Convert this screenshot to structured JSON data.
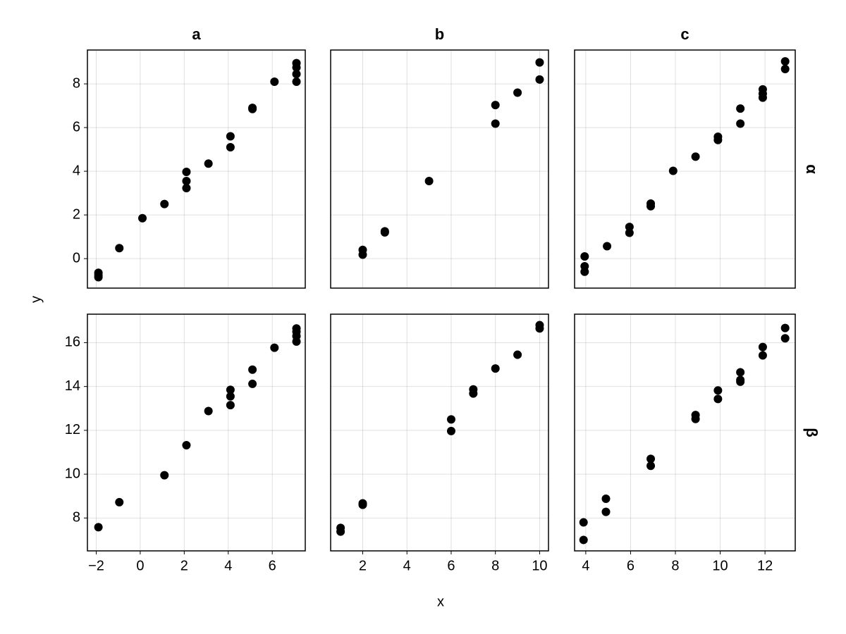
{
  "chart_data": {
    "type": "scatter",
    "xlabel": "x",
    "ylabel": "y",
    "columns": [
      "a",
      "b",
      "c"
    ],
    "rows": [
      "α",
      "β"
    ],
    "color": "#000000",
    "grid": true,
    "column_axes": [
      {
        "xlim": [
          -2.4,
          7.5
        ],
        "xticks": [
          {
            "value": -2,
            "label": "−2"
          },
          0,
          2,
          4,
          6
        ]
      },
      {
        "xlim": [
          0.55,
          10.4
        ],
        "xticks": [
          2,
          4,
          6,
          8,
          10
        ]
      },
      {
        "xlim": [
          3.5,
          13.35
        ],
        "xticks": [
          4,
          6,
          8,
          10,
          12
        ]
      }
    ],
    "row_axes": [
      {
        "ylim": [
          -1.35,
          9.55
        ],
        "yticks": [
          0,
          2,
          4,
          6,
          8
        ]
      },
      {
        "ylim": [
          6.5,
          17.3
        ],
        "yticks": [
          8,
          10,
          12,
          14,
          16
        ]
      }
    ],
    "panels": [
      [
        {
          "x": [
            -1.9,
            -1.9,
            -1.9,
            -0.95,
            0.1,
            1.1,
            2.1,
            2.1,
            2.1,
            3.1,
            4.1,
            4.1,
            5.1,
            5.1,
            6.1,
            7.1,
            7.1,
            7.1,
            7.1
          ],
          "y": [
            -0.65,
            -0.75,
            -0.85,
            0.48,
            1.85,
            2.5,
            3.97,
            3.55,
            3.23,
            4.35,
            5.6,
            5.1,
            6.85,
            6.9,
            8.1,
            8.95,
            8.75,
            8.45,
            8.1
          ]
        },
        {
          "x": [
            2,
            2,
            3,
            3,
            5,
            8,
            8,
            9,
            10,
            10
          ],
          "y": [
            0.4,
            0.18,
            1.25,
            1.2,
            3.55,
            7.03,
            6.18,
            7.6,
            8.98,
            8.2
          ]
        },
        {
          "x": [
            3.95,
            3.95,
            3.95,
            4.95,
            5.95,
            5.95,
            6.9,
            6.9,
            7.9,
            8.9,
            9.9,
            9.9,
            10.9,
            10.9,
            11.9,
            11.9,
            11.9,
            12.9,
            12.9
          ],
          "y": [
            0.1,
            -0.35,
            -0.6,
            0.57,
            1.45,
            1.18,
            2.52,
            2.4,
            4.02,
            4.67,
            5.58,
            5.43,
            6.87,
            6.18,
            7.75,
            7.55,
            7.37,
            9.03,
            8.68
          ]
        }
      ],
      [
        {
          "x": [
            -1.9,
            -0.95,
            1.1,
            2.1,
            3.1,
            4.1,
            4.1,
            4.1,
            5.1,
            5.1,
            6.1,
            7.1,
            7.1,
            7.1,
            7.1
          ],
          "y": [
            7.58,
            8.72,
            9.95,
            11.32,
            12.88,
            13.85,
            13.55,
            13.15,
            14.77,
            14.12,
            15.77,
            16.65,
            16.5,
            16.3,
            16.05
          ]
        },
        {
          "x": [
            1,
            1,
            2,
            2,
            6,
            6,
            7,
            7,
            8,
            9,
            10,
            10
          ],
          "y": [
            7.55,
            7.38,
            8.67,
            8.6,
            12.5,
            11.97,
            13.87,
            13.68,
            14.82,
            15.45,
            16.8,
            16.65
          ]
        },
        {
          "x": [
            3.9,
            3.9,
            4.9,
            4.9,
            6.9,
            6.9,
            8.9,
            8.9,
            9.9,
            9.9,
            10.9,
            10.9,
            10.9,
            11.9,
            11.9,
            12.9,
            12.9
          ],
          "y": [
            7.8,
            7.0,
            8.88,
            8.28,
            10.7,
            10.38,
            12.7,
            12.52,
            13.82,
            13.43,
            14.65,
            14.3,
            14.22,
            15.8,
            15.42,
            16.67,
            16.2
          ]
        }
      ]
    ]
  }
}
